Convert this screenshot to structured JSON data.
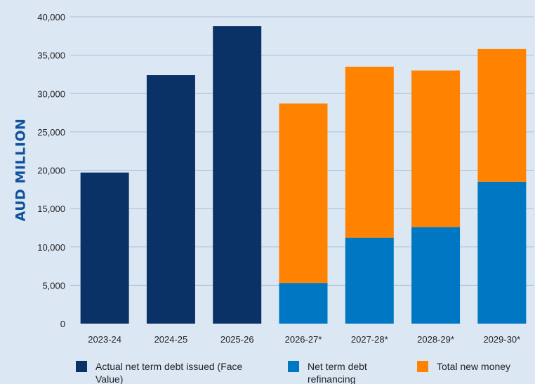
{
  "chart_data": {
    "type": "bar",
    "stacked": true,
    "title": "",
    "xlabel": "",
    "ylabel": "AUD MILLION",
    "ylim": [
      0,
      40000
    ],
    "yticks": [
      0,
      5000,
      10000,
      15000,
      20000,
      25000,
      30000,
      35000,
      40000
    ],
    "ytick_labels": [
      "0",
      "5,000",
      "10,000",
      "15,000",
      "20,000",
      "25,000",
      "30,000",
      "35,000",
      "40,000"
    ],
    "grid": true,
    "legend_position": "bottom",
    "categories": [
      "2023-24",
      "2024-25",
      "2025-26",
      "2026-27*",
      "2027-28*",
      "2028-29*",
      "2029-30*"
    ],
    "series": [
      {
        "name": "Actual net term debt issued (Face Value)",
        "legend_lines": [
          "Actual net term debt issued (Face",
          "Value)"
        ],
        "color": "#0b3266",
        "values": [
          19700,
          32400,
          38800,
          0,
          0,
          0,
          0
        ]
      },
      {
        "name": "Net term debt refinancing",
        "legend_lines": [
          "Net term debt",
          "refinancing"
        ],
        "color": "#0077c2",
        "values": [
          0,
          0,
          0,
          5300,
          11200,
          12600,
          18500
        ]
      },
      {
        "name": "Total new money",
        "legend_lines": [
          "Total new money"
        ],
        "color": "#ff8300",
        "values": [
          0,
          0,
          0,
          23400,
          22300,
          20400,
          17300
        ]
      }
    ]
  }
}
